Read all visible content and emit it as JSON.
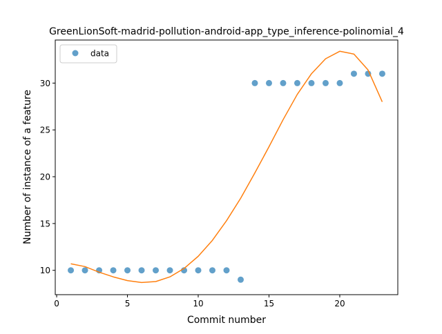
{
  "chart_data": {
    "type": "scatter",
    "title": "GreenLionSoft-madrid-pollution-android-app_type_inference-polinomial_4",
    "xlabel": "Commit number",
    "ylabel": "Number of instance of a feature",
    "xlim": [
      -0.1,
      24.1
    ],
    "ylim": [
      7.4,
      34.6
    ],
    "x_ticks": [
      0,
      5,
      10,
      15,
      20
    ],
    "y_ticks": [
      10,
      15,
      20,
      25,
      30
    ],
    "grid": false,
    "legend_position": "top-left",
    "series": [
      {
        "name": "data",
        "kind": "scatter",
        "color": "#1f77b4",
        "x": [
          1,
          2,
          3,
          4,
          5,
          6,
          7,
          8,
          9,
          10,
          11,
          12,
          13,
          14,
          15,
          16,
          17,
          18,
          19,
          20,
          21,
          22,
          23
        ],
        "y": [
          10,
          10,
          10,
          10,
          10,
          10,
          10,
          10,
          10,
          10,
          10,
          10,
          9,
          30,
          30,
          30,
          30,
          30,
          30,
          30,
          31,
          31,
          31
        ]
      },
      {
        "kind": "line",
        "color": "#ff7f0e",
        "x": [
          1,
          2,
          3,
          4,
          5,
          6,
          7,
          8,
          9,
          10,
          11,
          12,
          13,
          14,
          15,
          16,
          17,
          18,
          19,
          20,
          21,
          22,
          23
        ],
        "y": [
          10.7,
          10.4,
          9.8,
          9.3,
          8.9,
          8.7,
          8.8,
          9.3,
          10.2,
          11.5,
          13.2,
          15.3,
          17.7,
          20.4,
          23.2,
          26.1,
          28.8,
          31.0,
          32.6,
          33.4,
          33.1,
          31.4,
          28.0
        ]
      }
    ]
  }
}
